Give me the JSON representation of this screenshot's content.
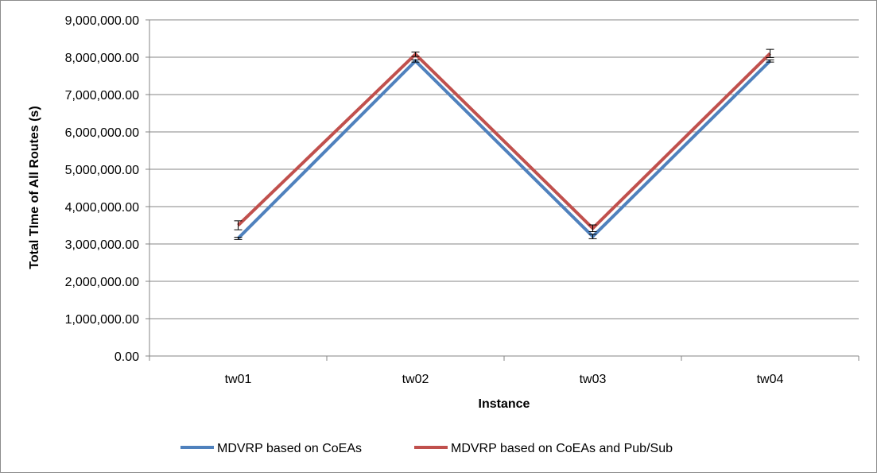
{
  "chart_data": {
    "type": "line",
    "categories": [
      "tw01",
      "tw02",
      "tw03",
      "tw04"
    ],
    "xlabel": "Instance",
    "ylabel": "Total TIme of All Routes (s)",
    "ylim": [
      0,
      9000000
    ],
    "y_ticks": [
      0,
      1000000,
      2000000,
      3000000,
      4000000,
      5000000,
      6000000,
      7000000,
      8000000,
      9000000
    ],
    "y_tick_labels": [
      "0.00",
      "1,000,000.00",
      "2,000,000.00",
      "3,000,000.00",
      "4,000,000.00",
      "5,000,000.00",
      "6,000,000.00",
      "7,000,000.00",
      "8,000,000.00",
      "9,000,000.00"
    ],
    "grid": true,
    "legend_position": "bottom",
    "series": [
      {
        "name": "MDVRP based on CoEAs",
        "color": "#4f81bd",
        "values": [
          3150000,
          7900000,
          3200000,
          7900000
        ],
        "error": [
          30000,
          30000,
          60000,
          30000
        ]
      },
      {
        "name": "MDVRP based on CoEAs and Pub/Sub",
        "color": "#c0504d",
        "values": [
          3500000,
          8080000,
          3420000,
          8100000
        ],
        "error": [
          120000,
          60000,
          90000,
          110000
        ]
      }
    ]
  }
}
